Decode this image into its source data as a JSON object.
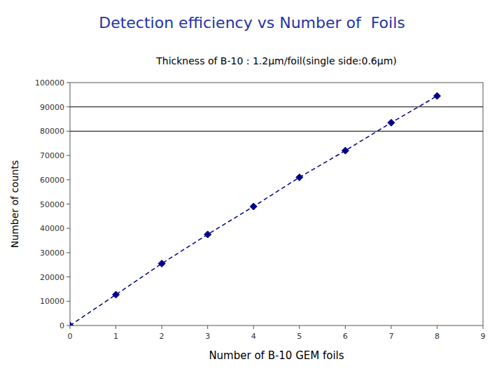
{
  "chart_data": {
    "type": "line",
    "title": "Detection efficiency vs Number of  Foils",
    "title_color": "#2233aa",
    "annotation": "Thickness of B-10 : 1.2μm/foil(single side:0.6μm)",
    "x_label": "Number of B-10 GEM foils",
    "y_label": "Number of counts",
    "x": [
      0,
      1,
      2,
      3,
      4,
      5,
      6,
      7,
      8
    ],
    "series": [
      {
        "color": "#00008B",
        "marker": "diamond",
        "line_style": "dashed",
        "values": [
          0,
          12700,
          25500,
          37500,
          49000,
          61000,
          72000,
          83500,
          94500
        ]
      }
    ],
    "hlines": [
      80000,
      90000
    ],
    "hline_color": "#000000",
    "xlim": [
      0,
      9
    ],
    "ylim": [
      0,
      100000
    ],
    "xticks": [
      0,
      1,
      2,
      3,
      4,
      5,
      6,
      7,
      8,
      9
    ],
    "yticks": [
      0,
      10000,
      20000,
      30000,
      40000,
      50000,
      60000,
      70000,
      80000,
      90000,
      100000
    ],
    "grid": false
  }
}
